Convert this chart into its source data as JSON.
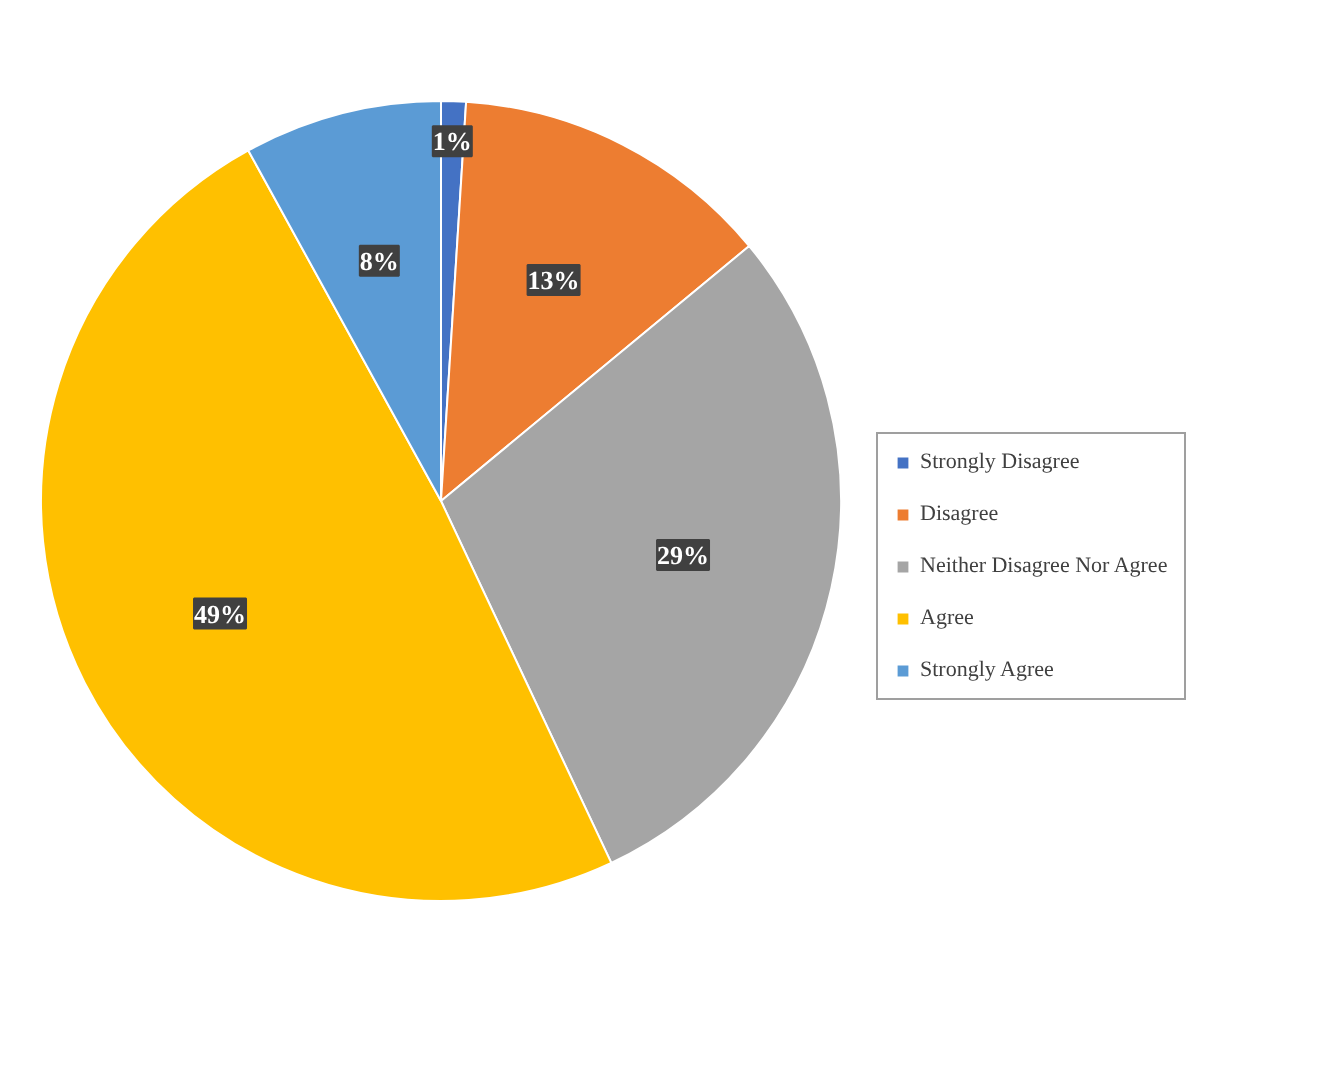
{
  "chart_data": {
    "type": "pie",
    "categories": [
      "Strongly Disagree",
      "Disagree",
      "Neither Disagree Nor Agree",
      "Agree",
      "Strongly Agree"
    ],
    "values": [
      1,
      13,
      29,
      49,
      8
    ],
    "colors": [
      "#4472c4",
      "#ed7d31",
      "#a5a5a5",
      "#ffc000",
      "#5b9bd5"
    ],
    "value_labels": [
      "1%",
      "13%",
      "29%",
      "49%",
      "8%"
    ],
    "legend": "right"
  }
}
